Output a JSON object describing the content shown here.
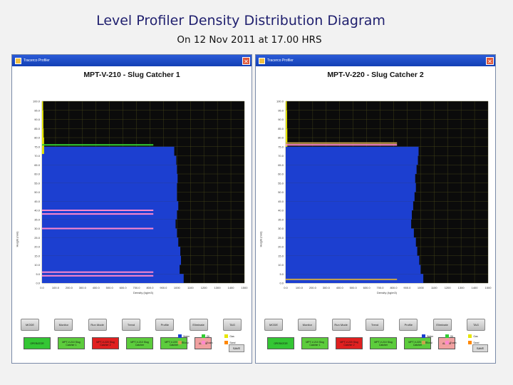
{
  "slide": {
    "title": "Level Profiler Density Distribution Diagram",
    "subtitle": "On 12 Nov 2011 at 17.00 HRS"
  },
  "panels": [
    {
      "window_title": "Tracerco Profiler",
      "vessel_title": "MPT-V-210 - Slug Catcher 1",
      "y_axis_label": "Height (mm)",
      "x_axis_label": "Density (kg/m3)",
      "y_ticks": [
        "0.0",
        "5.0",
        "10.0",
        "15.0",
        "20.0",
        "25.0",
        "30.0",
        "35.0",
        "40.0",
        "45.0",
        "50.0",
        "55.0",
        "60.0",
        "65.0",
        "70.0",
        "75.0",
        "80.0",
        "85.0",
        "90.0",
        "95.0",
        "100.0"
      ],
      "x_ticks": [
        "0.0",
        "100.0",
        "200.0",
        "300.0",
        "400.0",
        "500.0",
        "600.0",
        "700.0",
        "800.0",
        "900.0",
        "1000",
        "1100",
        "1200",
        "1300",
        "1400",
        "1500"
      ],
      "buttons": [
        "MODE",
        "Monitor",
        "Run Mode",
        "Trend",
        "Profile",
        "Eliminate",
        "TAG"
      ],
      "status": [
        {
          "label": "OPERATOR",
          "color": "#34c634"
        },
        {
          "label": "MPT-V-210 Slug Catcher 1",
          "color": "#5ccc3c"
        },
        {
          "label": "MPT-V-220 Slug Catcher 2",
          "color": "#e02020"
        },
        {
          "label": "MPT-V-210 Slug Catcher",
          "color": "#5ccc3c"
        },
        {
          "label": "MPT-V-220 Slug Catcher",
          "color": "#5ccc3c"
        },
        {
          "label": "ALARM",
          "color": "#f0a0a0",
          "small": true
        }
      ],
      "legend": [
        {
          "label": "Water",
          "color": "#1c3fd0"
        },
        {
          "label": "Oil",
          "color": "#33cc33"
        },
        {
          "label": "Gas",
          "color": "#e6e600"
        },
        {
          "label": "Emul",
          "color": "#c8a44a"
        },
        {
          "label": "Foam",
          "color": "#ff88cc"
        },
        {
          "label": "Sand",
          "color": "#ff8800"
        }
      ],
      "mini_button": "SAVE"
    },
    {
      "window_title": "Tracerco Profiler",
      "vessel_title": "MPT-V-220 - Slug Catcher 2",
      "y_axis_label": "Height (mm)",
      "x_axis_label": "Density (kg/m3)",
      "y_ticks": [
        "0.0",
        "5.0",
        "10.0",
        "15.0",
        "20.0",
        "25.0",
        "30.0",
        "35.0",
        "40.0",
        "45.0",
        "50.0",
        "55.0",
        "60.0",
        "65.0",
        "70.0",
        "75.0",
        "80.0",
        "85.0",
        "90.0",
        "95.0",
        "100.0"
      ],
      "x_ticks": [
        "0.0",
        "100.0",
        "200.0",
        "300.0",
        "400.0",
        "500.0",
        "600.0",
        "700.0",
        "800.0",
        "900.0",
        "1000",
        "1100",
        "1200",
        "1300",
        "1400",
        "1500"
      ],
      "buttons": [
        "MODE",
        "Monitor",
        "Run Mode",
        "Trend",
        "Profile",
        "Eliminate",
        "TAG"
      ],
      "status": [
        {
          "label": "OPERATOR",
          "color": "#34c634"
        },
        {
          "label": "MPT-V-210 Slug Catcher 1",
          "color": "#5ccc3c"
        },
        {
          "label": "MPT-V-220 Slug Catcher 2",
          "color": "#e02020"
        },
        {
          "label": "MPT-V-210 Slug Catcher",
          "color": "#5ccc3c"
        },
        {
          "label": "MPT-V-220 Slug Catcher",
          "color": "#5ccc3c"
        },
        {
          "label": "ALARM",
          "color": "#f0a0a0",
          "small": true
        }
      ],
      "legend": [
        {
          "label": "Water",
          "color": "#1c3fd0"
        },
        {
          "label": "Oil",
          "color": "#33cc33"
        },
        {
          "label": "Gas",
          "color": "#e6e600"
        },
        {
          "label": "Emul",
          "color": "#c8a44a"
        },
        {
          "label": "Foam",
          "color": "#ff88cc"
        },
        {
          "label": "Sand",
          "color": "#ff8800"
        }
      ],
      "mini_button": "SAVE"
    }
  ],
  "chart_data": [
    {
      "type": "bar",
      "orientation": "horizontal",
      "title": "MPT-V-210 - Slug Catcher 1",
      "xlim": [
        0,
        1500
      ],
      "ylim": [
        0,
        100
      ],
      "grid": true,
      "series": [
        {
          "name": "Water",
          "color": "#1c3fd0",
          "y": [
            5,
            10,
            15,
            20,
            25,
            30,
            35,
            40,
            45,
            50,
            55,
            60,
            65,
            70,
            75
          ],
          "values": [
            1050,
            1020,
            1030,
            1025,
            1010,
            1000,
            990,
            1000,
            1010,
            1000,
            1000,
            1005,
            1000,
            995,
            980
          ]
        },
        {
          "name": "Gas",
          "color": "#e6e600",
          "y": [
            76,
            80,
            85,
            90,
            95,
            100
          ],
          "values": [
            15,
            15,
            12,
            10,
            10,
            8
          ]
        }
      ],
      "bands": [
        {
          "name": "Oil",
          "color": "#33cc33",
          "level": 76
        },
        {
          "name": "Foam",
          "color": "#ff88cc",
          "level": 40
        },
        {
          "name": "Foam",
          "color": "#ff88cc",
          "level": 38
        },
        {
          "name": "Foam",
          "color": "#ff88cc",
          "level": 30
        },
        {
          "name": "Foam",
          "color": "#ff88cc",
          "level": 6
        },
        {
          "name": "Foam",
          "color": "#ff88cc",
          "level": 4
        }
      ]
    },
    {
      "type": "bar",
      "orientation": "horizontal",
      "title": "MPT-V-220 - Slug Catcher 2",
      "xlim": [
        0,
        1500
      ],
      "ylim": [
        0,
        100
      ],
      "grid": true,
      "series": [
        {
          "name": "Water",
          "color": "#1c3fd0",
          "y": [
            5,
            10,
            15,
            20,
            25,
            30,
            35,
            40,
            45,
            50,
            55,
            60,
            65,
            70,
            75
          ],
          "values": [
            1020,
            1000,
            990,
            975,
            965,
            950,
            930,
            935,
            945,
            955,
            965,
            960,
            970,
            980,
            985
          ]
        },
        {
          "name": "Gas",
          "color": "#e6e600",
          "y": [
            80,
            85,
            90,
            95,
            100
          ],
          "values": [
            12,
            12,
            10,
            10,
            8
          ]
        }
      ],
      "bands": [
        {
          "name": "Emul",
          "color": "#c8a44a",
          "level": 2
        },
        {
          "name": "Emul",
          "color": "#c8a44a",
          "level": 77
        },
        {
          "name": "Foam",
          "color": "#ff88cc",
          "level": 76
        }
      ]
    }
  ]
}
